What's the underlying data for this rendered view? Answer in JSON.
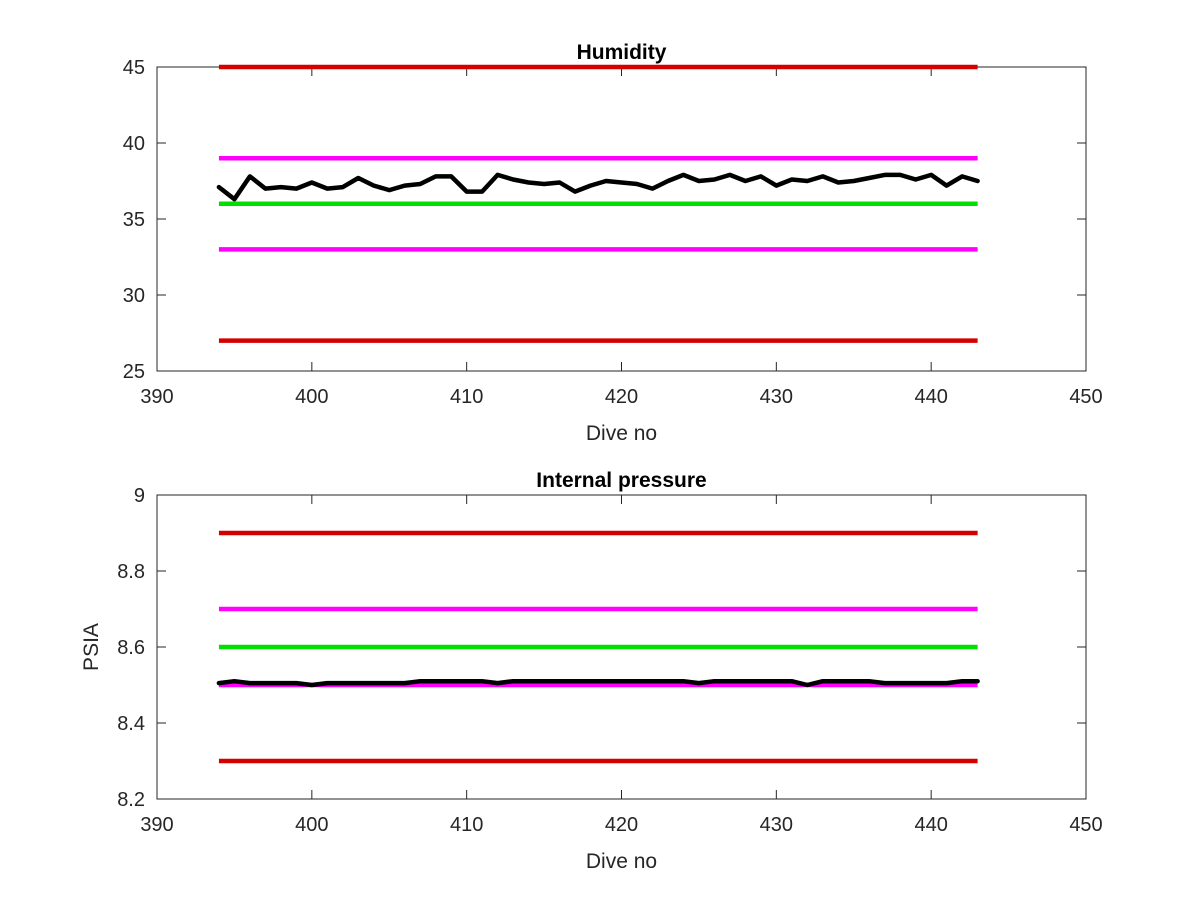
{
  "chart_data": [
    {
      "type": "line",
      "title": "Humidity",
      "xlabel": "Dive no",
      "ylabel": "",
      "xlim": [
        390,
        450
      ],
      "ylim": [
        25,
        45
      ],
      "xticks": [
        390,
        400,
        410,
        420,
        430,
        440,
        450
      ],
      "yticks": [
        25,
        30,
        35,
        40,
        45
      ],
      "xtick_labels": [
        "390",
        "400",
        "410",
        "420",
        "430",
        "440",
        "450"
      ],
      "ytick_labels": [
        "25",
        "30",
        "35",
        "40",
        "45"
      ],
      "grid": false,
      "limit_lines": [
        {
          "y": 45,
          "x_range": [
            394,
            443
          ],
          "color": "#d40000"
        },
        {
          "y": 39,
          "x_range": [
            394,
            443
          ],
          "color": "#ff00ff"
        },
        {
          "y": 36,
          "x_range": [
            394,
            443
          ],
          "color": "#00e000"
        },
        {
          "y": 33,
          "x_range": [
            394,
            443
          ],
          "color": "#ff00ff"
        },
        {
          "y": 27,
          "x_range": [
            394,
            443
          ],
          "color": "#d40000"
        }
      ],
      "series": [
        {
          "color": "#000000",
          "x": [
            394,
            395,
            396,
            397,
            398,
            399,
            400,
            401,
            402,
            403,
            404,
            405,
            406,
            407,
            408,
            409,
            410,
            411,
            412,
            413,
            414,
            415,
            416,
            417,
            418,
            419,
            420,
            421,
            422,
            423,
            424,
            425,
            426,
            427,
            428,
            429,
            430,
            431,
            432,
            433,
            434,
            435,
            436,
            437,
            438,
            439,
            440,
            441,
            442,
            443
          ],
          "y": [
            37.1,
            36.3,
            37.8,
            37.0,
            37.1,
            37.0,
            37.4,
            37.0,
            37.1,
            37.7,
            37.2,
            36.9,
            37.2,
            37.3,
            37.8,
            37.8,
            36.8,
            36.8,
            37.9,
            37.6,
            37.4,
            37.3,
            37.4,
            36.8,
            37.2,
            37.5,
            37.4,
            37.3,
            37.0,
            37.5,
            37.9,
            37.5,
            37.6,
            37.9,
            37.5,
            37.8,
            37.2,
            37.6,
            37.5,
            37.8,
            37.4,
            37.5,
            37.7,
            37.9,
            37.9,
            37.6,
            37.9,
            37.2,
            37.8,
            37.5
          ]
        }
      ]
    },
    {
      "type": "line",
      "title": "Internal pressure",
      "xlabel": "Dive no",
      "ylabel": "PSIA",
      "xlim": [
        390,
        450
      ],
      "ylim": [
        8.2,
        9
      ],
      "xticks": [
        390,
        400,
        410,
        420,
        430,
        440,
        450
      ],
      "yticks": [
        8.2,
        8.4,
        8.6,
        8.8,
        9
      ],
      "xtick_labels": [
        "390",
        "400",
        "410",
        "420",
        "430",
        "440",
        "450"
      ],
      "ytick_labels": [
        "8.2",
        "8.4",
        "8.6",
        "8.8",
        "9"
      ],
      "grid": false,
      "limit_lines": [
        {
          "y": 8.9,
          "x_range": [
            394,
            443
          ],
          "color": "#d40000"
        },
        {
          "y": 8.7,
          "x_range": [
            394,
            443
          ],
          "color": "#ff00ff"
        },
        {
          "y": 8.6,
          "x_range": [
            394,
            443
          ],
          "color": "#00e000"
        },
        {
          "y": 8.5,
          "x_range": [
            394,
            443
          ],
          "color": "#ff00ff"
        },
        {
          "y": 8.3,
          "x_range": [
            394,
            443
          ],
          "color": "#d40000"
        }
      ],
      "series": [
        {
          "color": "#000000",
          "x": [
            394,
            395,
            396,
            397,
            398,
            399,
            400,
            401,
            402,
            403,
            404,
            405,
            406,
            407,
            408,
            409,
            410,
            411,
            412,
            413,
            414,
            415,
            416,
            417,
            418,
            419,
            420,
            421,
            422,
            423,
            424,
            425,
            426,
            427,
            428,
            429,
            430,
            431,
            432,
            433,
            434,
            435,
            436,
            437,
            438,
            439,
            440,
            441,
            442,
            443
          ],
          "y": [
            8.505,
            8.51,
            8.505,
            8.505,
            8.505,
            8.505,
            8.5,
            8.505,
            8.505,
            8.505,
            8.505,
            8.505,
            8.505,
            8.51,
            8.51,
            8.51,
            8.51,
            8.51,
            8.505,
            8.51,
            8.51,
            8.51,
            8.51,
            8.51,
            8.51,
            8.51,
            8.51,
            8.51,
            8.51,
            8.51,
            8.51,
            8.505,
            8.51,
            8.51,
            8.51,
            8.51,
            8.51,
            8.51,
            8.5,
            8.51,
            8.51,
            8.51,
            8.51,
            8.505,
            8.505,
            8.505,
            8.505,
            8.505,
            8.51,
            8.51
          ]
        }
      ]
    }
  ]
}
